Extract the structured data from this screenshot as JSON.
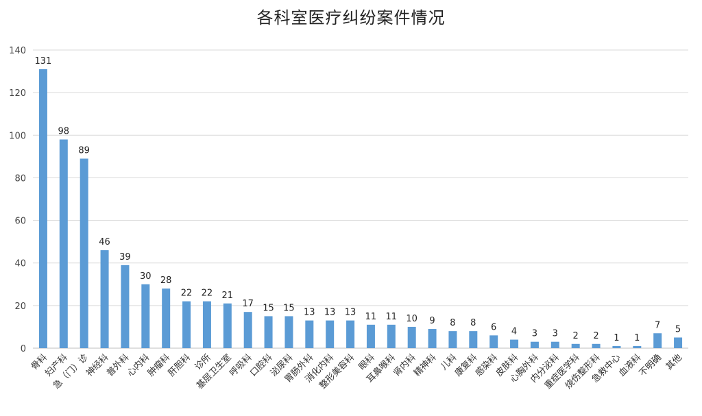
{
  "chart_data": {
    "type": "bar",
    "title": "各科室医疗纠纷案件情况",
    "categories": [
      "骨科",
      "妇产科",
      "急（门）诊",
      "神经科",
      "普外科",
      "心内科",
      "肿瘤科",
      "肝胆科",
      "诊所",
      "基层卫生室",
      "呼吸科",
      "口腔科",
      "泌尿科",
      "胃肠外科",
      "消化内科",
      "整形美容科",
      "眼科",
      "耳鼻喉科",
      "肾内科",
      "精神科",
      "儿科",
      "康复科",
      "感染科",
      "皮肤科",
      "心胸外科",
      "内分泌科",
      "重症医学科",
      "烧伤整形科",
      "急救中心",
      "血液科",
      "不明确",
      "其他"
    ],
    "values": [
      131,
      98,
      89,
      46,
      39,
      30,
      28,
      22,
      22,
      21,
      17,
      15,
      15,
      13,
      13,
      13,
      11,
      11,
      10,
      9,
      8,
      8,
      6,
      4,
      3,
      3,
      2,
      2,
      1,
      1,
      7,
      5
    ],
    "ylim": [
      0,
      140
    ],
    "yticks": [
      0,
      20,
      40,
      60,
      80,
      100,
      120,
      140
    ],
    "grid": true,
    "legend": "none",
    "bar_color": "#5b9bd5"
  }
}
